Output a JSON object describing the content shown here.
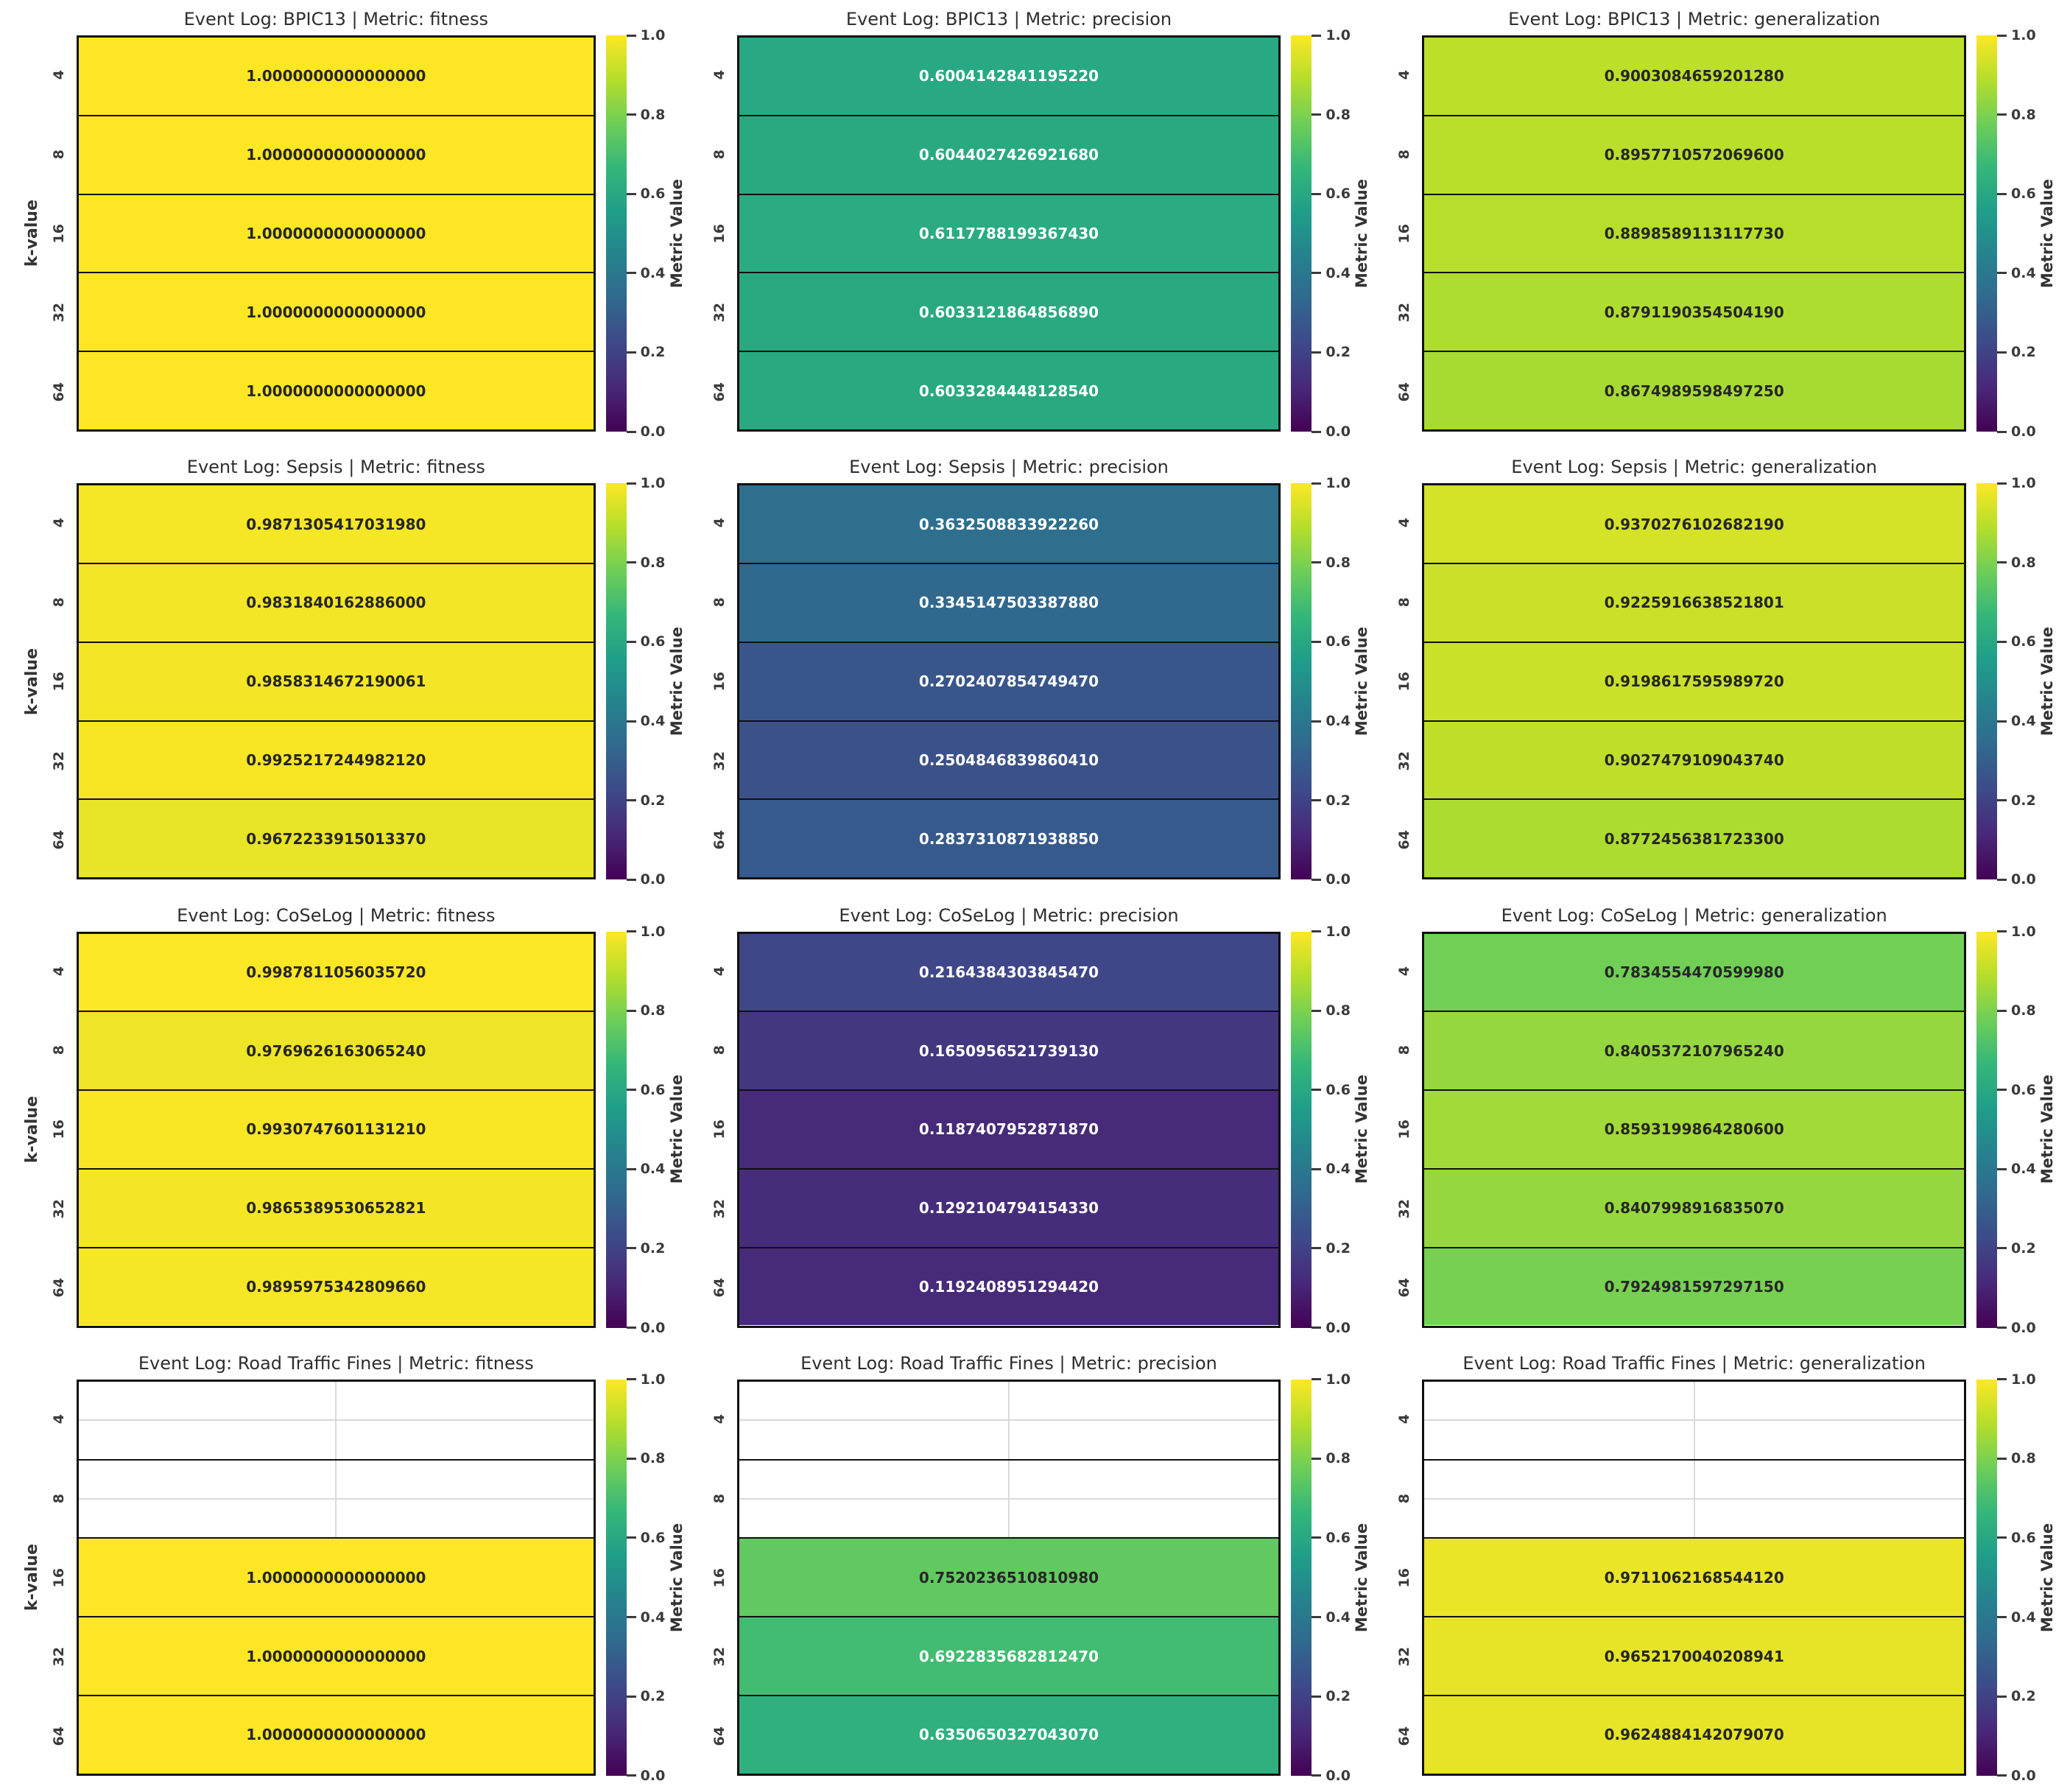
{
  "figure": {
    "ylabel": "k-value",
    "colorbar_label": "Metric Value",
    "colorbar_ticks": [
      "1.0",
      "0.8",
      "0.6",
      "0.4",
      "0.2",
      "0.0"
    ],
    "k_values": [
      "4",
      "8",
      "16",
      "32",
      "64"
    ],
    "colormap": "viridis",
    "viridis_stops": [
      [
        0.0,
        "#440154"
      ],
      [
        0.111,
        "#482878"
      ],
      [
        0.222,
        "#3e4989"
      ],
      [
        0.333,
        "#31688e"
      ],
      [
        0.444,
        "#26828e"
      ],
      [
        0.556,
        "#1f9e89"
      ],
      [
        0.667,
        "#35b779"
      ],
      [
        0.778,
        "#6ece58"
      ],
      [
        0.889,
        "#b5de2b"
      ],
      [
        1.0,
        "#fde725"
      ]
    ],
    "annotation_colors": {
      "dark": "#262626",
      "light": "#ffffff"
    },
    "nan_grid_color": "#d9d9d9",
    "cell_border_color": "#101010"
  },
  "chart_data": [
    {
      "type": "heatmap",
      "event_log": "BPIC13",
      "metric": "fitness",
      "title": "Event Log: BPIC13 | Metric: fitness",
      "rows": [
        "4",
        "8",
        "16",
        "32",
        "64"
      ],
      "vmin": 0,
      "vmax": 1,
      "values": [
        1.0,
        1.0,
        1.0,
        1.0,
        1.0
      ],
      "labels": [
        "1.0000000000000000",
        "1.0000000000000000",
        "1.0000000000000000",
        "1.0000000000000000",
        "1.0000000000000000"
      ]
    },
    {
      "type": "heatmap",
      "event_log": "BPIC13",
      "metric": "precision",
      "title": "Event Log: BPIC13 | Metric: precision",
      "rows": [
        "4",
        "8",
        "16",
        "32",
        "64"
      ],
      "vmin": 0,
      "vmax": 1,
      "values": [
        0.600414284119522,
        0.604402742692168,
        0.611778819936743,
        0.603312186485689,
        0.603328444812854
      ],
      "labels": [
        "0.6004142841195220",
        "0.6044027426921680",
        "0.6117788199367430",
        "0.6033121864856890",
        "0.6033284448128540"
      ]
    },
    {
      "type": "heatmap",
      "event_log": "BPIC13",
      "metric": "generalization",
      "title": "Event Log: BPIC13 | Metric: generalization",
      "rows": [
        "4",
        "8",
        "16",
        "32",
        "64"
      ],
      "vmin": 0,
      "vmax": 1,
      "values": [
        0.900308465920128,
        0.89577105720696,
        0.889858911311773,
        0.879119035450419,
        0.867498959849725
      ],
      "labels": [
        "0.9003084659201280",
        "0.8957710572069600",
        "0.8898589113117730",
        "0.8791190354504190",
        "0.8674989598497250"
      ]
    },
    {
      "type": "heatmap",
      "event_log": "Sepsis",
      "metric": "fitness",
      "title": "Event Log: Sepsis | Metric: fitness",
      "rows": [
        "4",
        "8",
        "16",
        "32",
        "64"
      ],
      "vmin": 0,
      "vmax": 1,
      "values": [
        0.987130541703198,
        0.9831840162886,
        0.985831467219006,
        0.992521724498212,
        0.967223391501337
      ],
      "labels": [
        "0.9871305417031980",
        "0.9831840162886000",
        "0.9858314672190061",
        "0.9925217244982120",
        "0.9672233915013370"
      ]
    },
    {
      "type": "heatmap",
      "event_log": "Sepsis",
      "metric": "precision",
      "title": "Event Log: Sepsis | Metric: precision",
      "rows": [
        "4",
        "8",
        "16",
        "32",
        "64"
      ],
      "vmin": 0,
      "vmax": 1,
      "values": [
        0.363250883392226,
        0.334514750338788,
        0.270240785474947,
        0.250484683986041,
        0.283731087193885
      ],
      "labels": [
        "0.3632508833922260",
        "0.3345147503387880",
        "0.2702407854749470",
        "0.2504846839860410",
        "0.2837310871938850"
      ]
    },
    {
      "type": "heatmap",
      "event_log": "Sepsis",
      "metric": "generalization",
      "title": "Event Log: Sepsis | Metric: generalization",
      "rows": [
        "4",
        "8",
        "16",
        "32",
        "64"
      ],
      "vmin": 0,
      "vmax": 1,
      "values": [
        0.937027610268219,
        0.92259166385218,
        0.919861759598972,
        0.902747910904374,
        0.87724563817233
      ],
      "labels": [
        "0.9370276102682190",
        "0.9225916638521801",
        "0.9198617595989720",
        "0.9027479109043740",
        "0.8772456381723300"
      ]
    },
    {
      "type": "heatmap",
      "event_log": "CoSeLog",
      "metric": "fitness",
      "title": "Event Log: CoSeLog | Metric: fitness",
      "rows": [
        "4",
        "8",
        "16",
        "32",
        "64"
      ],
      "vmin": 0,
      "vmax": 1,
      "values": [
        0.998781105603572,
        0.976962616306524,
        0.993074760113121,
        0.986538953065282,
        0.989597534280966
      ],
      "labels": [
        "0.9987811056035720",
        "0.9769626163065240",
        "0.9930747601131210",
        "0.9865389530652821",
        "0.9895975342809660"
      ]
    },
    {
      "type": "heatmap",
      "event_log": "CoSeLog",
      "metric": "precision",
      "title": "Event Log: CoSeLog | Metric: precision",
      "rows": [
        "4",
        "8",
        "16",
        "32",
        "64"
      ],
      "vmin": 0,
      "vmax": 1,
      "values": [
        0.216438430384547,
        0.165095652173913,
        0.118740795287187,
        0.129210479415433,
        0.119240895129442
      ],
      "labels": [
        "0.2164384303845470",
        "0.1650956521739130",
        "0.1187407952871870",
        "0.1292104794154330",
        "0.1192408951294420"
      ]
    },
    {
      "type": "heatmap",
      "event_log": "CoSeLog",
      "metric": "generalization",
      "title": "Event Log: CoSeLog | Metric: generalization",
      "rows": [
        "4",
        "8",
        "16",
        "32",
        "64"
      ],
      "vmin": 0,
      "vmax": 1,
      "values": [
        0.783455447059998,
        0.840537210796524,
        0.85931998642806,
        0.840799891683507,
        0.792498159729715
      ],
      "labels": [
        "0.7834554470599980",
        "0.8405372107965240",
        "0.8593199864280600",
        "0.8407998916835070",
        "0.7924981597297150"
      ]
    },
    {
      "type": "heatmap",
      "event_log": "Road Traffic Fines",
      "metric": "fitness",
      "title": "Event Log: Road Traffic Fines | Metric: fitness",
      "rows": [
        "4",
        "8",
        "16",
        "32",
        "64"
      ],
      "vmin": 0,
      "vmax": 1,
      "values": [
        null,
        null,
        1.0,
        1.0,
        1.0
      ],
      "labels": [
        null,
        null,
        "1.0000000000000000",
        "1.0000000000000000",
        "1.0000000000000000"
      ]
    },
    {
      "type": "heatmap",
      "event_log": "Road Traffic Fines",
      "metric": "precision",
      "title": "Event Log: Road Traffic Fines | Metric: precision",
      "rows": [
        "4",
        "8",
        "16",
        "32",
        "64"
      ],
      "vmin": 0,
      "vmax": 1,
      "values": [
        null,
        null,
        0.752023651081098,
        0.692283568281247,
        0.635065032704307
      ],
      "labels": [
        null,
        null,
        "0.7520236510810980",
        "0.6922835682812470",
        "0.6350650327043070"
      ]
    },
    {
      "type": "heatmap",
      "event_log": "Road Traffic Fines",
      "metric": "generalization",
      "title": "Event Log: Road Traffic Fines | Metric: generalization",
      "rows": [
        "4",
        "8",
        "16",
        "32",
        "64"
      ],
      "vmin": 0,
      "vmax": 1,
      "values": [
        null,
        null,
        0.971106216854412,
        0.965217004020894,
        0.962488414207907
      ],
      "labels": [
        null,
        null,
        "0.9711062168544120",
        "0.9652170040208941",
        "0.9624884142079070"
      ]
    }
  ]
}
